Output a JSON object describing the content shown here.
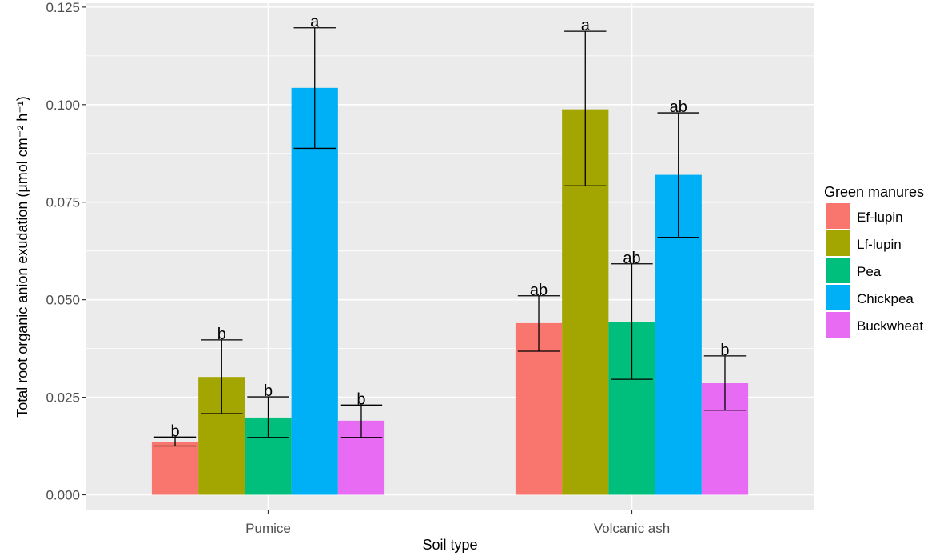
{
  "chart_data": {
    "type": "bar",
    "title": "",
    "xlabel": "Soil type",
    "ylabel": "Total root organic anion exudation (μmol cm⁻² h⁻¹)",
    "ylim": [
      -0.004,
      0.126
    ],
    "yticks": [
      "0.000",
      "0.025",
      "0.050",
      "0.075",
      "0.100",
      "0.125"
    ],
    "categories": [
      "Pumice",
      "Volcanic ash"
    ],
    "legend": {
      "title": "Green manures",
      "position": "right"
    },
    "grid": true,
    "series": [
      {
        "name": "Ef-lupin",
        "color": "#F8766D",
        "values": [
          0.0135,
          0.044
        ],
        "err_low": [
          0.0125,
          0.0368
        ],
        "err_high": [
          0.0148,
          0.051
        ],
        "sig": [
          "b",
          "ab"
        ]
      },
      {
        "name": "Lf-lupin",
        "color": "#A3A500",
        "values": [
          0.0302,
          0.0988
        ],
        "err_low": [
          0.0208,
          0.0792
        ],
        "err_high": [
          0.0397,
          0.1188
        ],
        "sig": [
          "b",
          "a"
        ]
      },
      {
        "name": "Pea",
        "color": "#00BF7D",
        "values": [
          0.0198,
          0.0442
        ],
        "err_low": [
          0.0147,
          0.0296
        ],
        "err_high": [
          0.0251,
          0.0592
        ],
        "sig": [
          "b",
          "ab"
        ]
      },
      {
        "name": "Chickpea",
        "color": "#00B0F6",
        "values": [
          0.1043,
          0.082
        ],
        "err_low": [
          0.0888,
          0.066
        ],
        "err_high": [
          0.1197,
          0.0979
        ],
        "sig": [
          "a",
          "ab"
        ]
      },
      {
        "name": "Buckwheat",
        "color": "#E76BF3",
        "values": [
          0.019,
          0.0286
        ],
        "err_low": [
          0.0147,
          0.0217
        ],
        "err_high": [
          0.023,
          0.0356
        ],
        "sig": [
          "b",
          "b"
        ]
      }
    ]
  }
}
